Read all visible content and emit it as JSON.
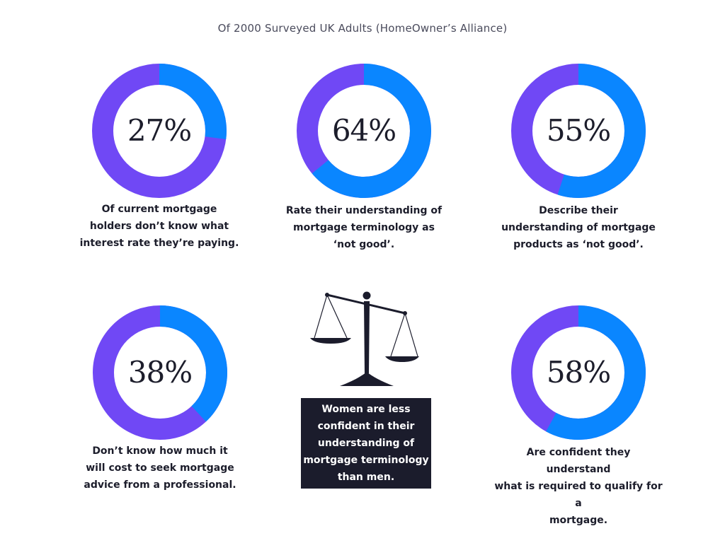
{
  "title": "Of 2000 Surveyed UK Adults (HomeOwner’s Alliance)",
  "colors": {
    "blue": "#0a86ff",
    "purple": "#7048f5",
    "dark": "#1b1c2c"
  },
  "stats": [
    {
      "value": "27%",
      "fraction": 0.27,
      "caption": "Of current mortgage\nholders don’t know what\ninterest rate they’re paying."
    },
    {
      "value": "64%",
      "fraction": 0.64,
      "caption": "Rate their understanding of\nmortgage terminology as\n‘not good’."
    },
    {
      "value": "55%",
      "fraction": 0.55,
      "caption": "Describe their\nunderstanding of mortgage\nproducts as ‘not good’."
    },
    {
      "value": "38%",
      "fraction": 0.38,
      "caption": "Don’t know how much it\nwill cost to seek mortgage\nadvice from a professional."
    },
    {
      "value": "58%",
      "fraction": 0.58,
      "caption": "Are confident they understand\nwhat is required to qualify for a\nmortgage."
    }
  ],
  "scales_icon": "balance-scale-icon",
  "note": "Women are less\nconfident in their\nunderstanding of\nmortgage terminology\nthan men."
}
